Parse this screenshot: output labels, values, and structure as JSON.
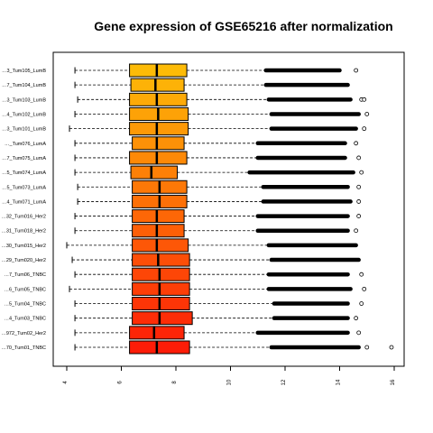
{
  "chart_data": {
    "type": "boxplot",
    "title": "Gene expression of GSE65216 after normalization",
    "xlabel": "",
    "ylabel": "",
    "xlim": [
      4,
      16
    ],
    "x_ticks": [
      "4",
      "6",
      "8",
      "10",
      "12",
      "14",
      "16"
    ],
    "grid": false,
    "legend": "none",
    "categories": [
      "…3_Tum105_LumB",
      "…7_Tum104_LumB",
      "…3_Tum103_LumB",
      "…4_Tum102_LumB",
      "…3_Tum101_LumB",
      "…_Tum076_LumA",
      "…7_Tum075_LumA",
      "…5_Tum074_LumA",
      "…5_Tum073_LumA",
      "…4_Tum071_LumA",
      "…32_Tum016_Her2",
      "…31_Tum018_Her2",
      "…30_Tum015_Her2",
      "…29_Tum020_Her2",
      "…7_Tum06_TNBC",
      "…6_Tum05_TNBC",
      "…5_Tum04_TNBC",
      "…4_Tum03_TNBC",
      "…972_Tum02_Her2",
      "…70_Tum01_TNBC"
    ],
    "colors": [
      "#fdbb07",
      "#fdb207",
      "#fdaa07",
      "#fda207",
      "#fd9907",
      "#fd9107",
      "#fd8907",
      "#fd8007",
      "#fd7807",
      "#fd7007",
      "#fd6707",
      "#fd5f07",
      "#fd5707",
      "#fd4e07",
      "#fd4607",
      "#fd3e07",
      "#fd3507",
      "#fd2d07",
      "#fd2507",
      "#fd1c07"
    ],
    "boxes": [
      {
        "whisker_low": 4.3,
        "q1": 6.3,
        "median": 7.3,
        "q3": 8.4,
        "whisker_high": 11.3,
        "outliers": [
          11.3,
          14.0,
          14.6
        ]
      },
      {
        "whisker_low": 4.3,
        "q1": 6.35,
        "median": 7.25,
        "q3": 8.3,
        "whisker_high": 11.3,
        "outliers": [
          11.3,
          14.3
        ]
      },
      {
        "whisker_low": 4.4,
        "q1": 6.3,
        "median": 7.3,
        "q3": 8.4,
        "whisker_high": 11.4,
        "outliers": [
          11.4,
          14.4,
          14.8,
          14.9
        ]
      },
      {
        "whisker_low": 4.3,
        "q1": 6.3,
        "median": 7.35,
        "q3": 8.45,
        "whisker_high": 11.5,
        "outliers": [
          11.5,
          14.7,
          15.0
        ]
      },
      {
        "whisker_low": 4.1,
        "q1": 6.3,
        "median": 7.3,
        "q3": 8.45,
        "whisker_high": 11.5,
        "outliers": [
          11.5,
          14.6,
          14.9
        ]
      },
      {
        "whisker_low": 4.3,
        "q1": 6.4,
        "median": 7.3,
        "q3": 8.3,
        "whisker_high": 11.0,
        "outliers": [
          11.0,
          14.2,
          14.6
        ]
      },
      {
        "whisker_low": 4.3,
        "q1": 6.3,
        "median": 7.3,
        "q3": 8.4,
        "whisker_high": 11.0,
        "outliers": [
          11.0,
          14.2,
          14.7
        ]
      },
      {
        "whisker_low": 4.3,
        "q1": 6.35,
        "median": 7.1,
        "q3": 8.05,
        "whisker_high": 10.7,
        "outliers": [
          10.7,
          14.5,
          14.8
        ]
      },
      {
        "whisker_low": 4.4,
        "q1": 6.4,
        "median": 7.4,
        "q3": 8.4,
        "whisker_high": 11.2,
        "outliers": [
          11.2,
          14.3,
          14.7
        ]
      },
      {
        "whisker_low": 4.4,
        "q1": 6.4,
        "median": 7.4,
        "q3": 8.4,
        "whisker_high": 11.2,
        "outliers": [
          11.2,
          14.4,
          14.7
        ]
      },
      {
        "whisker_low": 4.3,
        "q1": 6.4,
        "median": 7.3,
        "q3": 8.3,
        "whisker_high": 11.0,
        "outliers": [
          11.0,
          14.3,
          14.7
        ]
      },
      {
        "whisker_low": 4.3,
        "q1": 6.4,
        "median": 7.3,
        "q3": 8.3,
        "whisker_high": 11.0,
        "outliers": [
          11.0,
          14.3,
          14.6
        ]
      },
      {
        "whisker_low": 4.0,
        "q1": 6.4,
        "median": 7.3,
        "q3": 8.45,
        "whisker_high": 11.4,
        "outliers": [
          11.4,
          14.6
        ]
      },
      {
        "whisker_low": 4.2,
        "q1": 6.4,
        "median": 7.35,
        "q3": 8.5,
        "whisker_high": 11.5,
        "outliers": [
          11.5,
          14.7
        ]
      },
      {
        "whisker_low": 4.3,
        "q1": 6.4,
        "median": 7.4,
        "q3": 8.5,
        "whisker_high": 11.4,
        "outliers": [
          11.4,
          14.3,
          14.8
        ]
      },
      {
        "whisker_low": 4.1,
        "q1": 6.4,
        "median": 7.4,
        "q3": 8.5,
        "whisker_high": 11.4,
        "outliers": [
          11.4,
          14.4,
          14.9
        ]
      },
      {
        "whisker_low": 4.3,
        "q1": 6.4,
        "median": 7.4,
        "q3": 8.5,
        "whisker_high": 11.6,
        "outliers": [
          11.6,
          14.3,
          14.8
        ]
      },
      {
        "whisker_low": 4.3,
        "q1": 6.4,
        "median": 7.4,
        "q3": 8.6,
        "whisker_high": 11.6,
        "outliers": [
          11.6,
          14.3,
          14.6
        ]
      },
      {
        "whisker_low": 4.3,
        "q1": 6.3,
        "median": 7.2,
        "q3": 8.3,
        "whisker_high": 11.0,
        "outliers": [
          11.0,
          14.3,
          14.7
        ]
      },
      {
        "whisker_low": 4.3,
        "q1": 6.3,
        "median": 7.3,
        "q3": 8.5,
        "whisker_high": 11.5,
        "outliers": [
          11.5,
          14.7,
          15.0,
          15.9
        ]
      }
    ]
  }
}
